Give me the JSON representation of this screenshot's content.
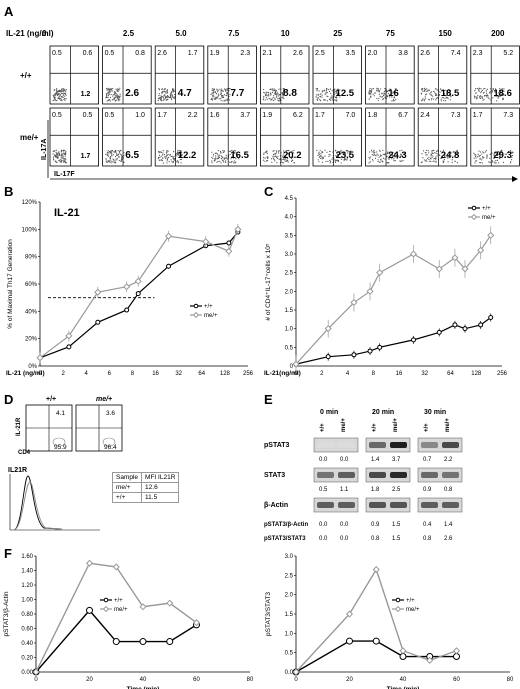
{
  "panels": {
    "A": "A",
    "B": "B",
    "C": "C",
    "D": "D",
    "E": "E",
    "F": "F"
  },
  "panelA": {
    "header_label": "IL-21 (ng/ml)",
    "concentrations": [
      "0",
      "2.5",
      "5.0",
      "7.5",
      "10",
      "25",
      "75",
      "150",
      "200"
    ],
    "genotypes": [
      "+/+",
      "me/+"
    ],
    "y_axis": "IL-17A",
    "x_axis": "IL-17F",
    "rows": [
      [
        {
          "ul": "0.5",
          "ur": "0.6",
          "lr": "1.2"
        },
        {
          "ul": "0.5",
          "ur": "0.8",
          "lr": "2.6"
        },
        {
          "ul": "2.6",
          "ur": "1.7",
          "lr": "4.7"
        },
        {
          "ul": "1.9",
          "ur": "2.3",
          "lr": "7.7"
        },
        {
          "ul": "2.1",
          "ur": "2.6",
          "lr": "8.8"
        },
        {
          "ul": "2.5",
          "ur": "3.5",
          "lr": "12.5"
        },
        {
          "ul": "2.0",
          "ur": "3.8",
          "lr": "16"
        },
        {
          "ul": "2.6",
          "ur": "7.4",
          "lr": "18.5"
        },
        {
          "ul": "2.3",
          "ur": "5.2",
          "lr": "18.6"
        }
      ],
      [
        {
          "ul": "0.5",
          "ur": "0.5",
          "lr": "1.7"
        },
        {
          "ul": "0.5",
          "ur": "1.0",
          "lr": "6.5"
        },
        {
          "ul": "1.7",
          "ur": "2.2",
          "lr": "12.2"
        },
        {
          "ul": "1.6",
          "ur": "3.7",
          "lr": "16.5"
        },
        {
          "ul": "1.9",
          "ur": "6.2",
          "lr": "20.2"
        },
        {
          "ul": "1.7",
          "ur": "7.0",
          "lr": "23.5"
        },
        {
          "ul": "1.8",
          "ur": "6.7",
          "lr": "24.3"
        },
        {
          "ul": "2.4",
          "ur": "7.3",
          "lr": "24.8"
        },
        {
          "ul": "1.7",
          "ur": "7.3",
          "lr": "29.3"
        }
      ]
    ]
  },
  "panelD": {
    "genotypes": [
      "+/+",
      "me/+"
    ],
    "ylabel": "IL-21R",
    "xlabel": "CD4",
    "quadrants": [
      {
        "ur": "4.1",
        "lr": "95.9"
      },
      {
        "ur": "3.6",
        "lr": "96.4"
      }
    ],
    "hist_label": "IL21R",
    "table_header": [
      "Sample",
      "MFI IL21R"
    ],
    "table_rows": [
      [
        "me/+",
        "12.6"
      ],
      [
        "+/+",
        "11.5"
      ]
    ]
  },
  "panelE": {
    "times": [
      "0 min",
      "20 min",
      "30 min"
    ],
    "lanes": [
      "+/+",
      "me/+",
      "+/+",
      "me/+",
      "+/+",
      "me/+"
    ],
    "pstat3_label": "pSTAT3",
    "pstat3_vals": [
      "0.0",
      "0.0",
      "1.4",
      "3.7",
      "0.7",
      "2.2"
    ],
    "stat3_label": "STAT3",
    "stat3_vals": [
      "0.5",
      "1.1",
      "1.8",
      "2.5",
      "0.9",
      "0.8"
    ],
    "actin_label": "β-Actin",
    "ratio1_label": "pSTAT3/β-Actin",
    "ratio1_vals": [
      "0.0",
      "0.0",
      "0.9",
      "1.5",
      "0.4",
      "1.4"
    ],
    "ratio2_label": "pSTAT3/STAT3",
    "ratio2_vals": [
      "0.0",
      "0.0",
      "0.8",
      "1.5",
      "0.8",
      "2.6"
    ]
  },
  "chart_data": [
    {
      "id": "B",
      "type": "line",
      "title": "IL-21",
      "xlabel": "IL-21 (ng/ml)",
      "ylabel": "% of Maximal Th17 Generation",
      "x_scale": "log2",
      "x_ticks": [
        "0",
        "2",
        "4",
        "6",
        "8",
        "16",
        "32",
        "64",
        "128",
        "256"
      ],
      "y_ticks": [
        "0%",
        "20%",
        "40%",
        "60%",
        "80%",
        "100%",
        "120%"
      ],
      "ylim": [
        0,
        120
      ],
      "reference_line": 50,
      "legend_position": "right",
      "series": [
        {
          "name": "+/+",
          "color": "#000000",
          "points": [
            [
              0,
              6
            ],
            [
              2.5,
              14
            ],
            [
              5,
              32
            ],
            [
              7.5,
              41
            ],
            [
              10,
              53
            ],
            [
              25,
              73
            ],
            [
              75,
              88
            ],
            [
              150,
              90
            ],
            [
              200,
              98
            ]
          ]
        },
        {
          "name": "me/+",
          "color": "#999999",
          "points": [
            [
              0,
              6
            ],
            [
              2.5,
              22
            ],
            [
              5,
              54
            ],
            [
              7.5,
              58
            ],
            [
              10,
              62
            ],
            [
              25,
              95
            ],
            [
              75,
              91
            ],
            [
              150,
              84
            ],
            [
              200,
              100
            ]
          ]
        }
      ]
    },
    {
      "id": "C",
      "type": "line",
      "xlabel": "IL-21(ng/ml)",
      "ylabel": "# of CD4⁺IL-17⁺cells x 10⁵",
      "x_scale": "log2",
      "x_ticks": [
        "0",
        "2",
        "4",
        "8",
        "16",
        "32",
        "64",
        "128",
        "256"
      ],
      "y_ticks": [
        "0",
        "0.5",
        "1.0",
        "1.5",
        "2.0",
        "2.5",
        "3.0",
        "3.5",
        "4.0",
        "4.5"
      ],
      "ylim": [
        0,
        4.5
      ],
      "legend_position": "top-right",
      "series": [
        {
          "name": "+/+",
          "color": "#000000",
          "points": [
            [
              0,
              0.05
            ],
            [
              2.5,
              0.25
            ],
            [
              5,
              0.3
            ],
            [
              7.5,
              0.4
            ],
            [
              10,
              0.5
            ],
            [
              25,
              0.7
            ],
            [
              50,
              0.9
            ],
            [
              75,
              1.1
            ],
            [
              100,
              1.0
            ],
            [
              150,
              1.1
            ],
            [
              200,
              1.3
            ]
          ]
        },
        {
          "name": "me/+",
          "color": "#999999",
          "points": [
            [
              0,
              0.05
            ],
            [
              2.5,
              1.0
            ],
            [
              5,
              1.7
            ],
            [
              7.5,
              2.0
            ],
            [
              10,
              2.5
            ],
            [
              25,
              3.0
            ],
            [
              50,
              2.6
            ],
            [
              75,
              2.9
            ],
            [
              100,
              2.6
            ],
            [
              150,
              3.1
            ],
            [
              200,
              3.5
            ]
          ]
        }
      ]
    },
    {
      "id": "F1",
      "type": "line",
      "xlabel": "Time (min)",
      "ylabel": "pSTAT3/β-Actin",
      "x_ticks": [
        "0",
        "20",
        "40",
        "60",
        "80"
      ],
      "y_ticks": [
        "0.00",
        "0.20",
        "0.40",
        "0.60",
        "0.80",
        "1.00",
        "1.20",
        "1.40",
        "1.60"
      ],
      "xlim": [
        0,
        80
      ],
      "ylim": [
        0,
        1.6
      ],
      "series": [
        {
          "name": "+/+",
          "color": "#000000",
          "points": [
            [
              0,
              0
            ],
            [
              20,
              0.85
            ],
            [
              30,
              0.42
            ],
            [
              40,
              0.42
            ],
            [
              50,
              0.42
            ],
            [
              60,
              0.65
            ]
          ]
        },
        {
          "name": "me/+",
          "color": "#999999",
          "points": [
            [
              0,
              0
            ],
            [
              20,
              1.5
            ],
            [
              30,
              1.45
            ],
            [
              40,
              0.9
            ],
            [
              50,
              0.95
            ],
            [
              60,
              0.68
            ]
          ]
        }
      ]
    },
    {
      "id": "F2",
      "type": "line",
      "xlabel": "Time (min)",
      "ylabel": "pSTAT3/STAT3",
      "x_ticks": [
        "0",
        "20",
        "40",
        "60",
        "80"
      ],
      "y_ticks": [
        "0.0",
        "0.5",
        "1.0",
        "1.5",
        "2.0",
        "2.5",
        "3.0"
      ],
      "xlim": [
        0,
        80
      ],
      "ylim": [
        0,
        3.0
      ],
      "series": [
        {
          "name": "+/+",
          "color": "#000000",
          "points": [
            [
              0,
              0
            ],
            [
              20,
              0.8
            ],
            [
              30,
              0.8
            ],
            [
              40,
              0.4
            ],
            [
              50,
              0.4
            ],
            [
              60,
              0.4
            ]
          ]
        },
        {
          "name": "me/+",
          "color": "#999999",
          "points": [
            [
              0,
              0
            ],
            [
              20,
              1.5
            ],
            [
              30,
              2.65
            ],
            [
              40,
              0.55
            ],
            [
              50,
              0.3
            ],
            [
              60,
              0.55
            ]
          ]
        }
      ]
    }
  ]
}
